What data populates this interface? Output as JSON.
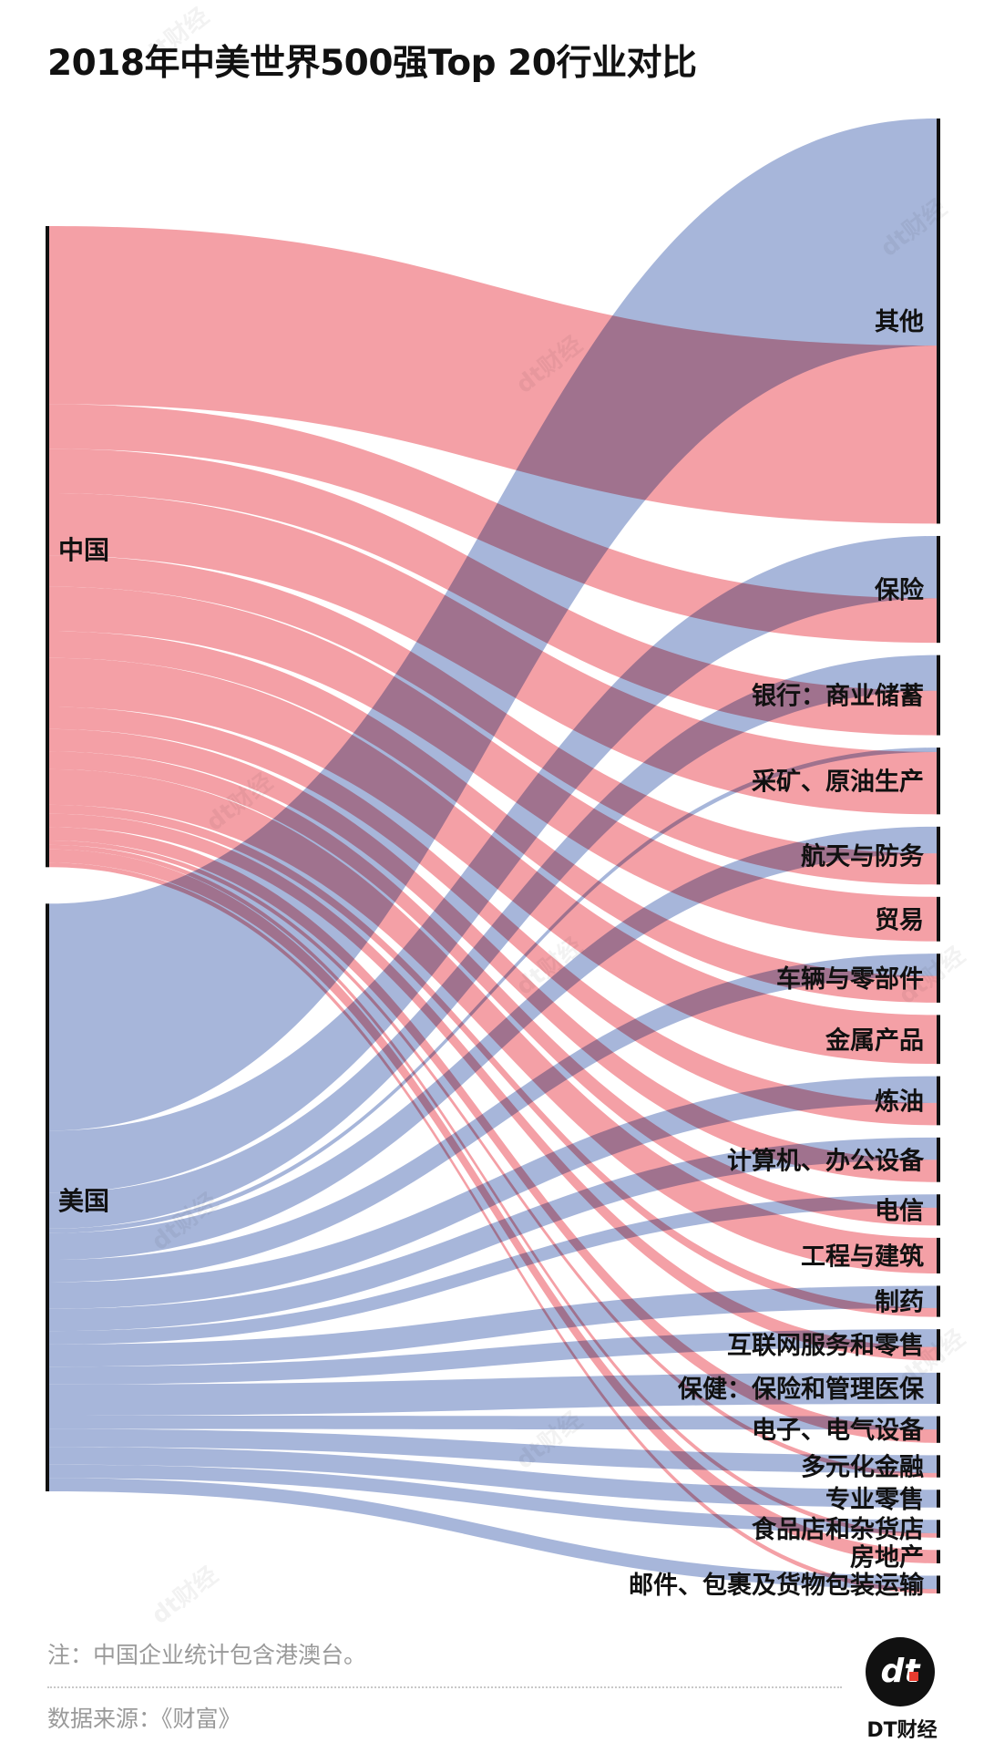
{
  "chart_data": {
    "type": "sankey",
    "title": "2018年中美世界500强Top 20行业对比",
    "unit": "companies",
    "sources": [
      {
        "name": "中国",
        "color": "#f4a0a6"
      },
      {
        "name": "美国",
        "color": "#a7b6da"
      }
    ],
    "targets": [
      {
        "name": "其他",
        "china": 40,
        "usa": 51
      },
      {
        "name": "保险",
        "china": 10,
        "usa": 14
      },
      {
        "name": "银行：商业储蓄",
        "china": 10,
        "usa": 8
      },
      {
        "name": "采矿、原油生产",
        "china": 14,
        "usa": 1
      },
      {
        "name": "航天与防务",
        "china": 7,
        "usa": 6
      },
      {
        "name": "贸易",
        "china": 10,
        "usa": 0
      },
      {
        "name": "车辆与零部件",
        "china": 6,
        "usa": 5
      },
      {
        "name": "金属产品",
        "china": 11,
        "usa": 0
      },
      {
        "name": "炼油",
        "china": 5,
        "usa": 6
      },
      {
        "name": "计算机、办公设备",
        "china": 5,
        "usa": 5
      },
      {
        "name": "电信",
        "china": 4,
        "usa": 3
      },
      {
        "name": "工程与建筑",
        "china": 8,
        "usa": 0
      },
      {
        "name": "制药",
        "china": 2,
        "usa": 5
      },
      {
        "name": "互联网服务和零售",
        "china": 3,
        "usa": 4
      },
      {
        "name": "保健：保险和管理医保",
        "china": 0,
        "usa": 7
      },
      {
        "name": "电子、电气设备",
        "china": 3,
        "usa": 3
      },
      {
        "name": "多元化金融",
        "china": 1,
        "usa": 4
      },
      {
        "name": "专业零售",
        "china": 0,
        "usa": 4
      },
      {
        "name": "食品店和杂货店",
        "china": 1,
        "usa": 3
      },
      {
        "name": "房地产",
        "china": 3,
        "usa": 0
      },
      {
        "name": "邮件、包裹及货物包装运输",
        "china": 1,
        "usa": 3
      }
    ]
  },
  "footer": {
    "note": "注：中国企业统计包含港澳台。",
    "source": "数据来源：《财富》",
    "logo_text": "dt",
    "brand": "DT财经"
  },
  "watermark": {
    "text": "dt财经"
  },
  "colors": {
    "china": "#f4a0a6",
    "usa": "#a7b6da",
    "bar": "#111111"
  }
}
